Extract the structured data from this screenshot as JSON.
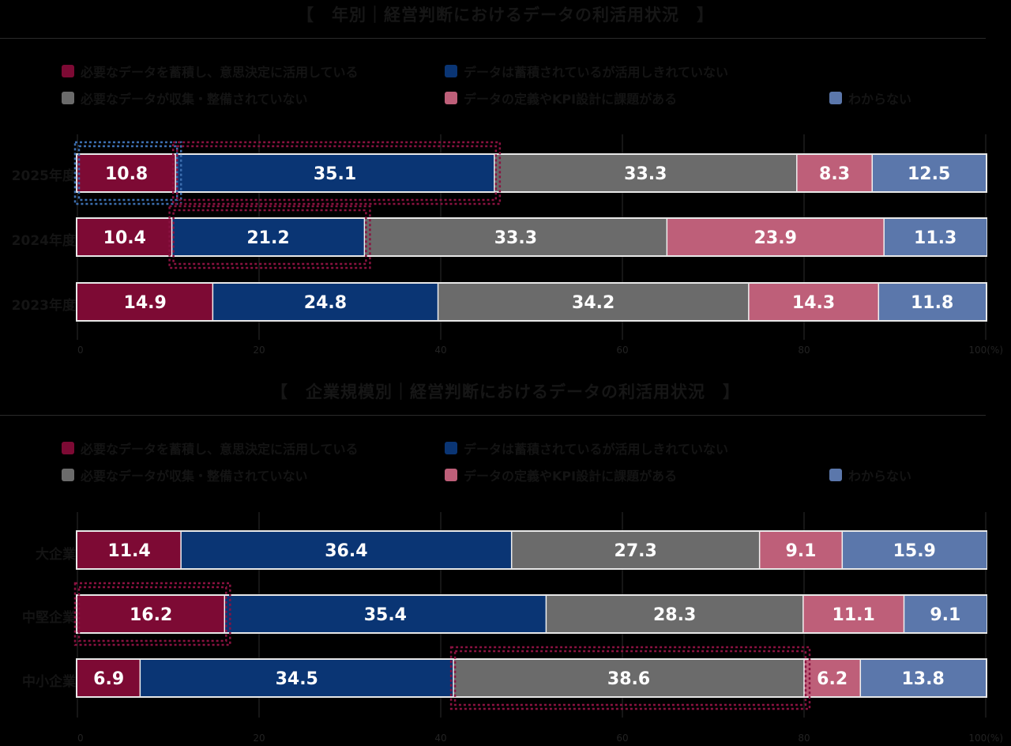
{
  "chart_data": [
    {
      "type": "bar",
      "orientation": "horizontal",
      "stacked": true,
      "title": "【　年別｜経営判断におけるデータの利活用状況　】",
      "categories": [
        "2025年度",
        "2024年度",
        "2023年度"
      ],
      "series": [
        {
          "name": "必要なデータを蓄積し、意思決定に活用している",
          "color": "#7d0a34",
          "values": [
            10.8,
            10.4,
            14.9
          ]
        },
        {
          "name": "データは蓄積されているが活用しきれていない",
          "color": "#0a3574",
          "values": [
            35.1,
            21.2,
            24.8
          ]
        },
        {
          "name": "必要なデータが収集・整備されていない",
          "color": "#6b6b6b",
          "values": [
            33.3,
            33.3,
            34.2
          ]
        },
        {
          "name": "データの定義やKPI設計に課題がある",
          "color": "#be5f79",
          "values": [
            8.3,
            23.9,
            14.3
          ]
        },
        {
          "name": "わからない",
          "color": "#5b77ab",
          "values": [
            12.5,
            11.3,
            11.8
          ]
        }
      ],
      "xlim": [
        0,
        100
      ],
      "ticks": [
        "0",
        "20",
        "40",
        "60",
        "80",
        "100(%)"
      ],
      "grid": true,
      "legend": "top"
    },
    {
      "type": "bar",
      "orientation": "horizontal",
      "stacked": true,
      "title": "【　企業規模別｜経営判断におけるデータの利活用状況　】",
      "categories": [
        "大企業",
        "中堅企業",
        "中小企業"
      ],
      "series": [
        {
          "name": "必要なデータを蓄積し、意思決定に活用している",
          "color": "#7d0a34",
          "values": [
            11.4,
            16.2,
            6.9
          ]
        },
        {
          "name": "データは蓄積されているが活用しきれていない",
          "color": "#0a3574",
          "values": [
            36.4,
            35.4,
            34.5
          ]
        },
        {
          "name": "必要なデータが収集・整備されていない",
          "color": "#6b6b6b",
          "values": [
            27.3,
            28.3,
            38.6
          ]
        },
        {
          "name": "データの定義やKPI設計に課題がある",
          "color": "#be5f79",
          "values": [
            9.1,
            11.1,
            6.2
          ]
        },
        {
          "name": "わからない",
          "color": "#5b77ab",
          "values": [
            15.9,
            9.1,
            13.8
          ]
        }
      ],
      "xlim": [
        0,
        100
      ],
      "ticks": [
        "0",
        "20",
        "40",
        "60",
        "80",
        "100(%)"
      ],
      "grid": true,
      "legend": "top"
    }
  ],
  "highlights": [
    {
      "chart": 0,
      "category": 0,
      "series": [
        0,
        0
      ],
      "style": "dotted",
      "color": "#3d6fb0"
    },
    {
      "chart": 0,
      "category": 0,
      "series": [
        1,
        1
      ],
      "style": "dotted",
      "color": "#8a1240"
    },
    {
      "chart": 0,
      "category": 1,
      "series": [
        1,
        1
      ],
      "style": "dotted",
      "color": "#8a1240"
    },
    {
      "chart": 1,
      "category": 1,
      "series": [
        0,
        0
      ],
      "style": "dotted",
      "color": "#8a1240"
    },
    {
      "chart": 1,
      "category": 2,
      "series": [
        2,
        2
      ],
      "style": "dotted",
      "color": "#8a1240"
    }
  ]
}
